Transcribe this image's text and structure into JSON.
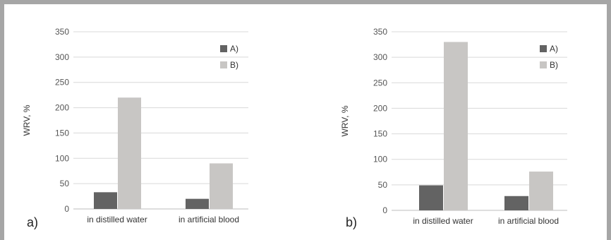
{
  "chart_data": [
    {
      "type": "bar",
      "panel_label": "a)",
      "categories": [
        "in distilled water",
        "in artificial blood"
      ],
      "ylabel": "WRV, %",
      "ylim": [
        0,
        350
      ],
      "yticks": [
        0,
        50,
        100,
        150,
        200,
        250,
        300,
        350
      ],
      "grid": true,
      "legend_position": "top-right",
      "series": [
        {
          "name": "A)",
          "color": "#636363",
          "values": [
            33,
            20
          ]
        },
        {
          "name": "B)",
          "color": "#c8c6c4",
          "values": [
            220,
            90
          ]
        }
      ]
    },
    {
      "type": "bar",
      "panel_label": "b)",
      "categories": [
        "in distilled water",
        "in artificial blood"
      ],
      "ylabel": "WRV, %",
      "ylim": [
        0,
        350
      ],
      "yticks": [
        0,
        50,
        100,
        150,
        200,
        250,
        300,
        350
      ],
      "grid": true,
      "legend_position": "top-right",
      "series": [
        {
          "name": "A)",
          "color": "#636363",
          "values": [
            49,
            28
          ]
        },
        {
          "name": "B)",
          "color": "#c8c6c4",
          "values": [
            330,
            76
          ]
        }
      ]
    }
  ]
}
